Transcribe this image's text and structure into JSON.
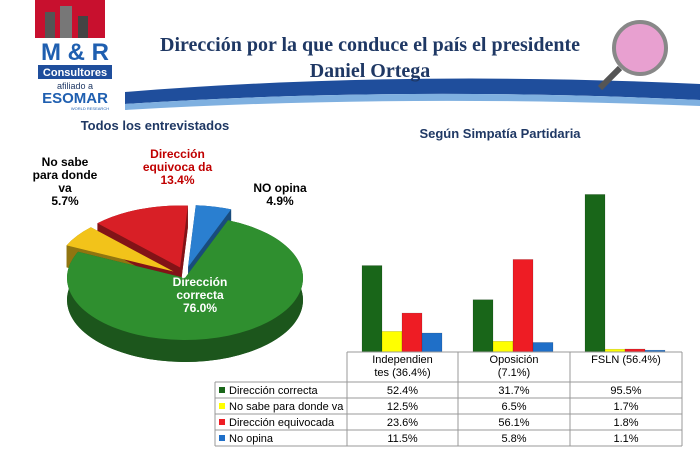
{
  "header": {
    "logo_name": "M & R",
    "logo_sub": "Consultores",
    "affiliation": "afiliado a",
    "network": "ESOMAR",
    "network_sub": "WORLD RESEARCH",
    "title": "Dirección por la que conduce el país el presidente Daniel Ortega"
  },
  "chart_data": [
    {
      "type": "pie",
      "title": "Todos los entrevistados",
      "categories": [
        "Dirección correcta",
        "No sabe para donde va",
        "Dirección equivoca da",
        "NO opina"
      ],
      "values": [
        76.0,
        5.7,
        13.4,
        4.9
      ],
      "value_labels": [
        "76.0%",
        "5.7%",
        "13.4%",
        "4.9%"
      ],
      "colors": [
        "#2f8f2f",
        "#f2c31a",
        "#d81f26",
        "#2a7fd0"
      ]
    },
    {
      "type": "bar",
      "title": "Según Simpatía Partidaria",
      "categories": [
        "Independien tes (36.4%)",
        "Oposición (7.1%)",
        "FSLN (56.4%)"
      ],
      "series": [
        {
          "name": "Dirección correcta",
          "color": "#196619",
          "values": [
            52.4,
            31.7,
            95.5
          ],
          "value_labels": [
            "52.4%",
            "31.7%",
            "95.5%"
          ]
        },
        {
          "name": "No sabe para donde va",
          "color": "#ffff00",
          "values": [
            12.5,
            6.5,
            1.7
          ],
          "value_labels": [
            "12.5%",
            "6.5%",
            "1.7%"
          ]
        },
        {
          "name": "Dirección equivocada",
          "color": "#ee1c24",
          "values": [
            23.6,
            56.1,
            1.8
          ],
          "value_labels": [
            "23.6%",
            "56.1%",
            "1.8%"
          ]
        },
        {
          "name": "No opina",
          "color": "#1f6fc8",
          "values": [
            11.5,
            5.8,
            1.1
          ],
          "value_labels": [
            "11.5%",
            "5.8%",
            "1.1%"
          ]
        }
      ]
    }
  ]
}
